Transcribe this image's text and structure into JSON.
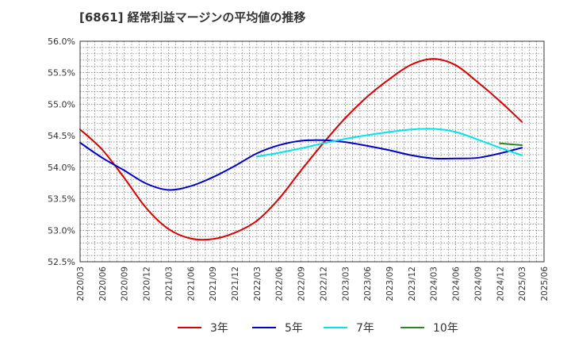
{
  "chart_data": {
    "type": "line",
    "title": "[6861]  経常利益マージンの平均値の推移",
    "xlabel": "",
    "ylabel": "",
    "x_ticks": [
      "2020/03",
      "2020/06",
      "2020/09",
      "2020/12",
      "2021/03",
      "2021/06",
      "2021/09",
      "2021/12",
      "2022/03",
      "2022/06",
      "2022/09",
      "2022/12",
      "2023/03",
      "2023/06",
      "2023/09",
      "2023/12",
      "2024/03",
      "2024/06",
      "2024/09",
      "2024/12",
      "2025/03",
      "2025/06"
    ],
    "y_ticks": [
      "52.5%",
      "53.0%",
      "53.5%",
      "54.0%",
      "54.5%",
      "55.0%",
      "55.5%",
      "56.0%"
    ],
    "ylim": [
      52.5,
      56.0
    ],
    "grid": true,
    "legend_position": "bottom",
    "series": [
      {
        "name": "3年",
        "color": "#dd0000",
        "x": [
          "2020/03",
          "2020/06",
          "2020/09",
          "2020/12",
          "2021/03",
          "2021/06",
          "2021/09",
          "2021/12",
          "2022/03",
          "2022/06",
          "2022/09",
          "2022/12",
          "2023/03",
          "2023/06",
          "2023/09",
          "2023/12",
          "2024/03",
          "2024/06",
          "2024/09",
          "2024/12",
          "2025/03"
        ],
        "values": [
          54.6,
          54.28,
          53.83,
          53.35,
          53.02,
          52.87,
          52.86,
          52.96,
          53.15,
          53.5,
          53.95,
          54.38,
          54.78,
          55.12,
          55.4,
          55.63,
          55.72,
          55.62,
          55.35,
          55.05,
          54.72
        ]
      },
      {
        "name": "5年",
        "color": "#0000cc",
        "x": [
          "2020/03",
          "2020/06",
          "2020/09",
          "2020/12",
          "2021/03",
          "2021/06",
          "2021/09",
          "2021/12",
          "2022/03",
          "2022/06",
          "2022/09",
          "2022/12",
          "2023/03",
          "2023/06",
          "2023/09",
          "2023/12",
          "2024/03",
          "2024/06",
          "2024/09",
          "2024/12",
          "2025/03"
        ],
        "values": [
          54.39,
          54.15,
          53.95,
          53.74,
          53.64,
          53.7,
          53.84,
          54.02,
          54.22,
          54.35,
          54.42,
          54.43,
          54.4,
          54.34,
          54.27,
          54.19,
          54.14,
          54.14,
          54.15,
          54.22,
          54.31
        ]
      },
      {
        "name": "7年",
        "color": "#00e5ee",
        "x": [
          "2022/03",
          "2022/06",
          "2022/09",
          "2022/12",
          "2023/03",
          "2023/06",
          "2023/09",
          "2023/12",
          "2024/03",
          "2024/06",
          "2024/09",
          "2024/12",
          "2025/03"
        ],
        "values": [
          54.17,
          54.23,
          54.3,
          54.38,
          54.45,
          54.51,
          54.56,
          54.6,
          54.61,
          54.56,
          54.44,
          54.31,
          54.19
        ]
      },
      {
        "name": "10年",
        "color": "#228b22",
        "x": [
          "2024/12",
          "2025/03"
        ],
        "values": [
          54.38,
          54.35
        ]
      }
    ]
  }
}
